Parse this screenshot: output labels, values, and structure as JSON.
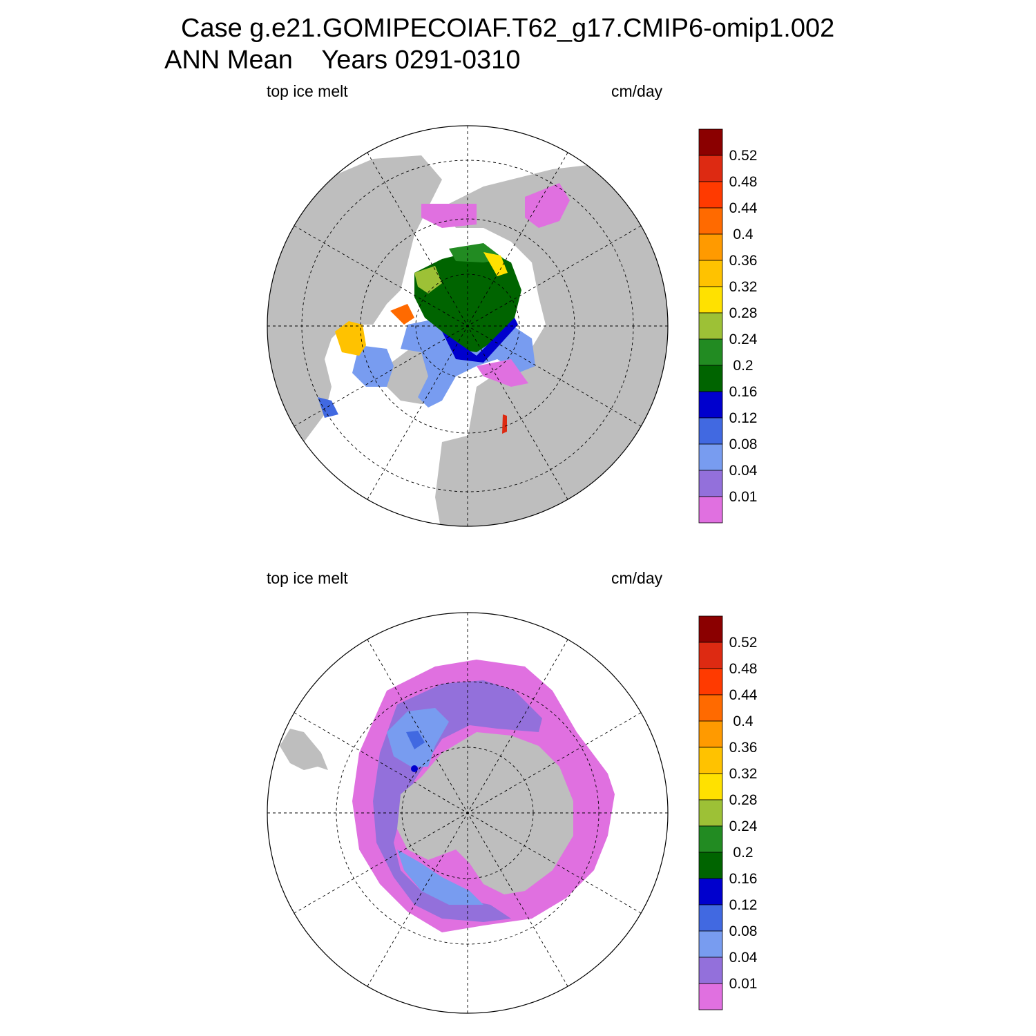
{
  "title": {
    "case": "Case g.e21.GOMIPECOIAF.T62_g17.CMIP6-omip1.002",
    "season": "ANN Mean",
    "years": "Years 0291-0310"
  },
  "panels": [
    {
      "id": "north",
      "hemisphere": "Northern Hemisphere",
      "variable_label": "top ice melt",
      "units_label": "cm/day"
    },
    {
      "id": "south",
      "hemisphere": "Southern Hemisphere",
      "variable_label": "top ice melt",
      "units_label": "cm/day"
    }
  ],
  "colorbar": {
    "labels": [
      "0.52",
      "0.48",
      "0.44",
      "0.4",
      "0.36",
      "0.32",
      "0.28",
      "0.24",
      "0.2",
      "0.16",
      "0.12",
      "0.08",
      "0.04",
      "0.01"
    ],
    "colors_top_to_bottom": [
      "#8b0000",
      "#dd2a12",
      "#ff3a00",
      "#ff6a00",
      "#ff9a00",
      "#ffc200",
      "#ffe100",
      "#9dc136",
      "#228b22",
      "#006400",
      "#0000cd",
      "#4169e1",
      "#789cf0",
      "#9370db",
      "#e070e0"
    ]
  },
  "colors": {
    "land": "#bebebe",
    "ocean": "#ffffff",
    "grid_line": "#000000"
  }
}
